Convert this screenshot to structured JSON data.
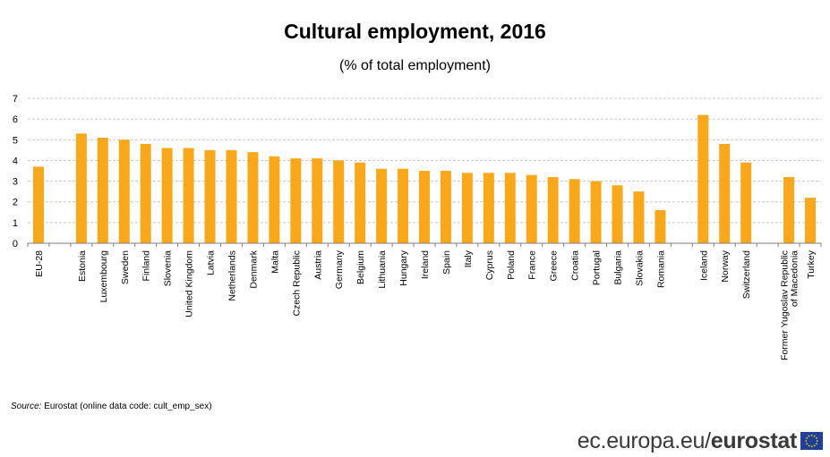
{
  "header": {
    "title": "Cultural employment,  2016",
    "subtitle": "(% of total employment)"
  },
  "chart_data": {
    "type": "bar",
    "title": "Cultural employment,  2016",
    "subtitle": "(% of total employment)",
    "categories": [
      "EU-28",
      "",
      "Estonia",
      "Luxembourg",
      "Sweden",
      "Finland",
      "Slovenia",
      "United Kingdom",
      "Latvia",
      "Netherlands",
      "Denmark",
      "Malta",
      "Czech Republic",
      "Austria",
      "Germany",
      "Belgium",
      "Lithuania",
      "Hungary",
      "Ireland",
      "Spain",
      "Italy",
      "Cyprus",
      "Poland",
      "France",
      "Greece",
      "Croatia",
      "Portugal",
      "Bulgaria",
      "Slovakia",
      "Romania",
      "",
      "Iceland",
      "Norway",
      "Switzerland",
      "",
      "Former Yugoslav Republic of Macedonia",
      "Turkey"
    ],
    "category_label_lines": [
      [
        "EU-28"
      ],
      [],
      [
        "Estonia"
      ],
      [
        "Luxembourg"
      ],
      [
        "Sweden"
      ],
      [
        "Finland"
      ],
      [
        "Slovenia"
      ],
      [
        "United Kingdom"
      ],
      [
        "Latvia"
      ],
      [
        "Netherlands"
      ],
      [
        "Denmark"
      ],
      [
        "Malta"
      ],
      [
        "Czech Republic"
      ],
      [
        "Austria"
      ],
      [
        "Germany"
      ],
      [
        "Belgium"
      ],
      [
        "Lithuania"
      ],
      [
        "Hungary"
      ],
      [
        "Ireland"
      ],
      [
        "Spain"
      ],
      [
        "Italy"
      ],
      [
        "Cyprus"
      ],
      [
        "Poland"
      ],
      [
        "France"
      ],
      [
        "Greece"
      ],
      [
        "Croatia"
      ],
      [
        "Portugal"
      ],
      [
        "Bulgaria"
      ],
      [
        "Slovakia"
      ],
      [
        "Romania"
      ],
      [],
      [
        "Iceland"
      ],
      [
        "Norway"
      ],
      [
        "Switzerland"
      ],
      [],
      [
        "Former Yugoslav Republic",
        "of Macedonia"
      ],
      [
        "Turkey"
      ]
    ],
    "values": [
      3.7,
      null,
      5.3,
      5.1,
      5.0,
      4.8,
      4.6,
      4.6,
      4.5,
      4.5,
      4.4,
      4.2,
      4.1,
      4.1,
      4.0,
      3.9,
      3.6,
      3.6,
      3.5,
      3.5,
      3.4,
      3.4,
      3.4,
      3.3,
      3.2,
      3.1,
      3.0,
      2.8,
      2.5,
      1.6,
      null,
      6.2,
      4.8,
      3.9,
      null,
      3.2,
      2.2
    ],
    "ylim": [
      0,
      7
    ],
    "yticks": [
      0,
      1,
      2,
      3,
      4,
      5,
      6,
      7
    ],
    "xlabel": "",
    "ylabel": "",
    "grid": "horizontal dashed",
    "legend": "none",
    "bar_color": "#F9A71B",
    "grid_color": "#c8c8c8"
  },
  "footer": {
    "source_label": "Source:",
    "source_text": " Eurostat (online data code: cult_emp_sex)"
  },
  "brand": {
    "domain": "ec.europa.eu",
    "sep": "/",
    "name": "eurostat"
  },
  "colors": {
    "accent": "#F9A71B",
    "eu_flag_blue": "#1f3f99",
    "eu_flag_stars": "#f5d800"
  }
}
